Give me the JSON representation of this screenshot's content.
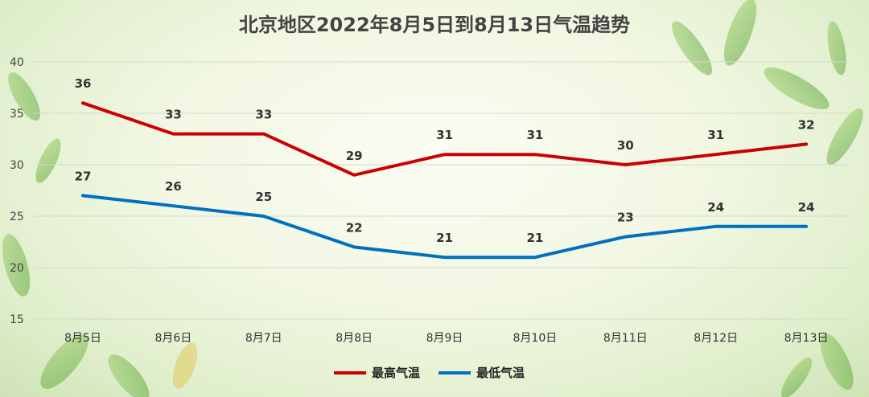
{
  "chart_data": {
    "type": "line",
    "title": "北京地区2022年8月5日到8月13日气温趋势",
    "categories": [
      "8月5日",
      "8月6日",
      "8月7日",
      "8月8日",
      "8月9日",
      "8月10日",
      "8月11日",
      "8月12日",
      "8月13日"
    ],
    "series": [
      {
        "name": "最高气温",
        "values": [
          36,
          33,
          33,
          29,
          31,
          31,
          30,
          31,
          32
        ],
        "color": "#cc0000"
      },
      {
        "name": "最低气温",
        "values": [
          27,
          26,
          25,
          22,
          21,
          21,
          23,
          24,
          24
        ],
        "color": "#0070c0"
      }
    ],
    "yticks": [
      15,
      20,
      25,
      30,
      35,
      40
    ],
    "ylim": [
      15,
      40
    ],
    "grid": true,
    "legend_position": "bottom-center"
  }
}
